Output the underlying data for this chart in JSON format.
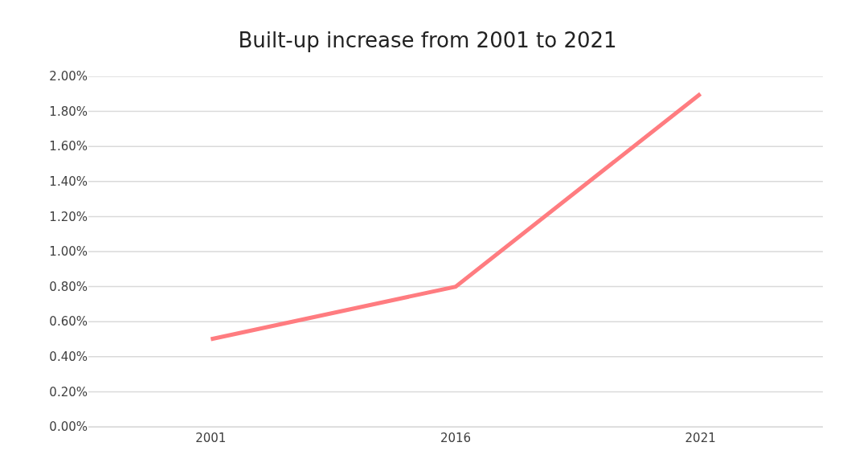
{
  "chart_data": {
    "type": "line",
    "title": "Built-up increase from 2001 to 2021",
    "categories": [
      "2001",
      "2016",
      "2021"
    ],
    "series": [
      {
        "color": "#ff7c80",
        "values": [
          0.5,
          0.8,
          1.9
        ]
      }
    ],
    "ylim": [
      0,
      2
    ],
    "yticks": [
      {
        "value": 0,
        "label": "0.00%"
      },
      {
        "value": 0.2,
        "label": "0.20%"
      },
      {
        "value": 0.4,
        "label": "0.40%"
      },
      {
        "value": 0.6,
        "label": "0.60%"
      },
      {
        "value": 0.8,
        "label": "0.80%"
      },
      {
        "value": 1.0,
        "label": "1.00%"
      },
      {
        "value": 1.2,
        "label": "1.20%"
      },
      {
        "value": 1.4,
        "label": "1.40%"
      },
      {
        "value": 1.6,
        "label": "1.60%"
      },
      {
        "value": 1.8,
        "label": "1.80%"
      },
      {
        "value": 2.0,
        "label": "2.00%"
      }
    ],
    "grid": "y",
    "marker": "none",
    "line_style": "solid"
  }
}
